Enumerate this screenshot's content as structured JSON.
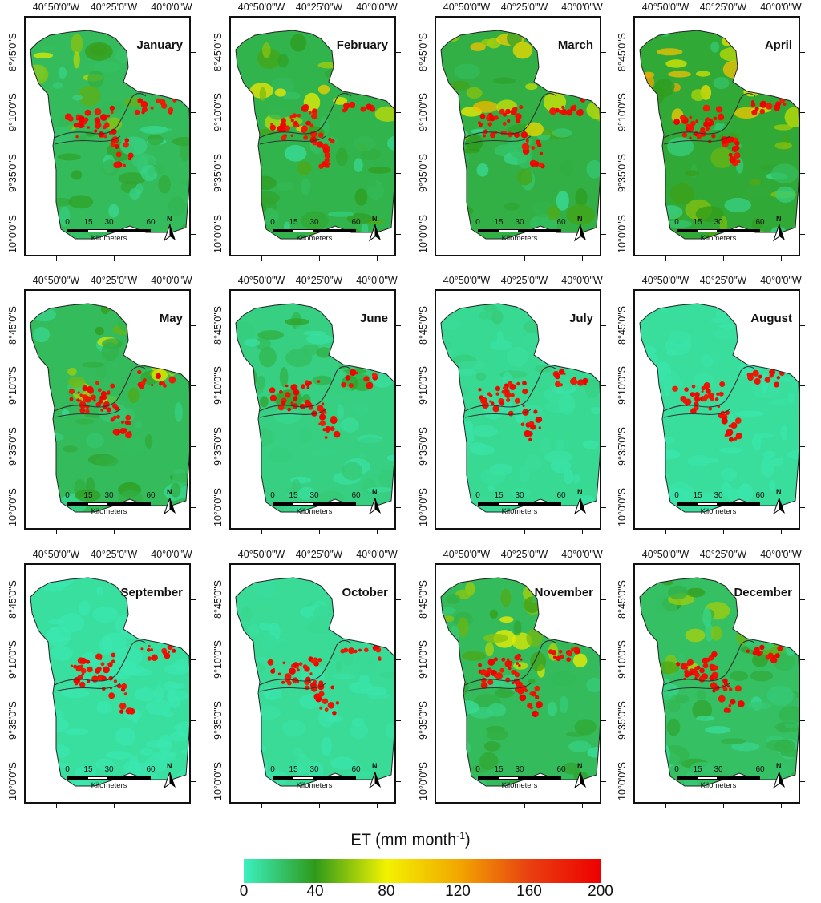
{
  "panels": [
    {
      "month": "January",
      "intensity": 0.45
    },
    {
      "month": "February",
      "intensity": 0.55
    },
    {
      "month": "March",
      "intensity": 0.6
    },
    {
      "month": "April",
      "intensity": 0.7
    },
    {
      "month": "May",
      "intensity": 0.45
    },
    {
      "month": "June",
      "intensity": 0.2
    },
    {
      "month": "July",
      "intensity": 0.08
    },
    {
      "month": "August",
      "intensity": 0.02
    },
    {
      "month": "September",
      "intensity": 0.0
    },
    {
      "month": "October",
      "intensity": 0.05
    },
    {
      "month": "November",
      "intensity": 0.45
    },
    {
      "month": "December",
      "intensity": 0.4
    }
  ],
  "axes": {
    "lon_labels": [
      "40°50'0\"W",
      "40°25'0\"W",
      "40°0'0\"W"
    ],
    "lat_labels": [
      "8°45'0\"S",
      "9°10'0\"S",
      "9°35'0\"S",
      "10°0'0\"S"
    ]
  },
  "scalebar": {
    "ticks": [
      "0",
      "15",
      "30",
      "60"
    ],
    "unit": "Kilometers",
    "north": "N"
  },
  "legend": {
    "title": "ET (mm month",
    "superscript": "-1",
    "title_end": ")",
    "ticks": [
      "0",
      "40",
      "80",
      "120",
      "160",
      "200"
    ],
    "colors": [
      "#3cf0c0",
      "#2e9a1a",
      "#f2f200",
      "#f2a800",
      "#e84010",
      "#ee0000"
    ]
  }
}
